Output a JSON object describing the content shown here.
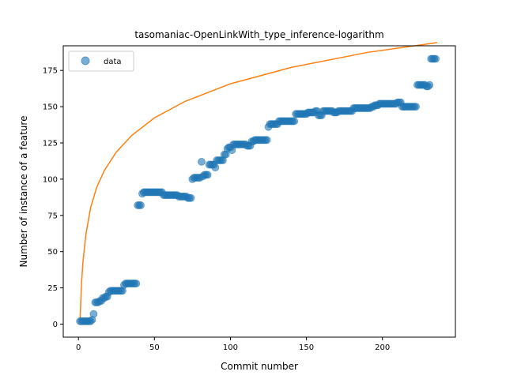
{
  "chart_data": {
    "type": "scatter",
    "title": "tasomaniac-OpenLinkWith_type_inference-logarithm",
    "xlabel": "Commit number",
    "ylabel": "Number of instance of a feature",
    "xlim": [
      -10,
      248
    ],
    "ylim": [
      -9,
      192
    ],
    "xticks": [
      0,
      50,
      100,
      150,
      200
    ],
    "yticks": [
      0,
      25,
      50,
      75,
      100,
      125,
      150,
      175
    ],
    "legend": {
      "position": "top-left",
      "entries": [
        {
          "label": "data"
        }
      ]
    },
    "colors": {
      "data": "#1f77b4",
      "fit": "#ff7f0e"
    },
    "series": [
      {
        "name": "data",
        "kind": "scatter",
        "points": [
          [
            1,
            2
          ],
          [
            2,
            2
          ],
          [
            3,
            2
          ],
          [
            4,
            2
          ],
          [
            5,
            2
          ],
          [
            6,
            2
          ],
          [
            7,
            2
          ],
          [
            8,
            2
          ],
          [
            9,
            3
          ],
          [
            10,
            7
          ],
          [
            11,
            15
          ],
          [
            12,
            15
          ],
          [
            13,
            15
          ],
          [
            14,
            16
          ],
          [
            15,
            16
          ],
          [
            16,
            18
          ],
          [
            17,
            18
          ],
          [
            18,
            19
          ],
          [
            19,
            19
          ],
          [
            20,
            22
          ],
          [
            21,
            23
          ],
          [
            22,
            23
          ],
          [
            23,
            23
          ],
          [
            24,
            23
          ],
          [
            25,
            23
          ],
          [
            26,
            23
          ],
          [
            27,
            23
          ],
          [
            28,
            23
          ],
          [
            29,
            23
          ],
          [
            30,
            27
          ],
          [
            31,
            28
          ],
          [
            32,
            28
          ],
          [
            33,
            28
          ],
          [
            34,
            28
          ],
          [
            35,
            28
          ],
          [
            36,
            28
          ],
          [
            37,
            28
          ],
          [
            38,
            28
          ],
          [
            39,
            82
          ],
          [
            40,
            82
          ],
          [
            41,
            82
          ],
          [
            42,
            90
          ],
          [
            43,
            91
          ],
          [
            44,
            91
          ],
          [
            45,
            91
          ],
          [
            46,
            91
          ],
          [
            47,
            91
          ],
          [
            48,
            91
          ],
          [
            49,
            91
          ],
          [
            50,
            91
          ],
          [
            51,
            91
          ],
          [
            52,
            91
          ],
          [
            53,
            91
          ],
          [
            54,
            91
          ],
          [
            55,
            91
          ],
          [
            56,
            89
          ],
          [
            57,
            89
          ],
          [
            58,
            89
          ],
          [
            59,
            89
          ],
          [
            60,
            89
          ],
          [
            61,
            89
          ],
          [
            62,
            89
          ],
          [
            63,
            89
          ],
          [
            64,
            89
          ],
          [
            65,
            89
          ],
          [
            66,
            88
          ],
          [
            67,
            88
          ],
          [
            68,
            88
          ],
          [
            69,
            88
          ],
          [
            70,
            88
          ],
          [
            71,
            88
          ],
          [
            72,
            87
          ],
          [
            73,
            87
          ],
          [
            74,
            87
          ],
          [
            75,
            100
          ],
          [
            76,
            101
          ],
          [
            77,
            101
          ],
          [
            78,
            101
          ],
          [
            79,
            101
          ],
          [
            80,
            101
          ],
          [
            81,
            112
          ],
          [
            82,
            102
          ],
          [
            83,
            103
          ],
          [
            84,
            103
          ],
          [
            85,
            103
          ],
          [
            86,
            110
          ],
          [
            87,
            110
          ],
          [
            88,
            110
          ],
          [
            89,
            110
          ],
          [
            90,
            108
          ],
          [
            91,
            113
          ],
          [
            92,
            113
          ],
          [
            93,
            113
          ],
          [
            94,
            113
          ],
          [
            95,
            113
          ],
          [
            96,
            117
          ],
          [
            97,
            117
          ],
          [
            98,
            121
          ],
          [
            99,
            122
          ],
          [
            100,
            122
          ],
          [
            101,
            120
          ],
          [
            102,
            124
          ],
          [
            103,
            124
          ],
          [
            104,
            124
          ],
          [
            105,
            124
          ],
          [
            106,
            124
          ],
          [
            107,
            124
          ],
          [
            108,
            124
          ],
          [
            109,
            124
          ],
          [
            110,
            124
          ],
          [
            111,
            123
          ],
          [
            112,
            123
          ],
          [
            113,
            123
          ],
          [
            114,
            126
          ],
          [
            115,
            126
          ],
          [
            116,
            127
          ],
          [
            117,
            127
          ],
          [
            118,
            127
          ],
          [
            119,
            127
          ],
          [
            120,
            127
          ],
          [
            121,
            127
          ],
          [
            122,
            127
          ],
          [
            123,
            127
          ],
          [
            124,
            127
          ],
          [
            125,
            136
          ],
          [
            126,
            138
          ],
          [
            127,
            138
          ],
          [
            128,
            138
          ],
          [
            129,
            138
          ],
          [
            130,
            138
          ],
          [
            131,
            138
          ],
          [
            132,
            140
          ],
          [
            133,
            140
          ],
          [
            134,
            140
          ],
          [
            135,
            140
          ],
          [
            136,
            140
          ],
          [
            137,
            140
          ],
          [
            138,
            140
          ],
          [
            139,
            140
          ],
          [
            140,
            140
          ],
          [
            141,
            140
          ],
          [
            142,
            140
          ],
          [
            143,
            145
          ],
          [
            144,
            145
          ],
          [
            145,
            145
          ],
          [
            146,
            145
          ],
          [
            147,
            145
          ],
          [
            148,
            145
          ],
          [
            149,
            145
          ],
          [
            150,
            145
          ],
          [
            151,
            146
          ],
          [
            152,
            146
          ],
          [
            153,
            146
          ],
          [
            154,
            146
          ],
          [
            155,
            146
          ],
          [
            156,
            147
          ],
          [
            157,
            147
          ],
          [
            158,
            144
          ],
          [
            159,
            144
          ],
          [
            160,
            144
          ],
          [
            161,
            147
          ],
          [
            162,
            147
          ],
          [
            163,
            147
          ],
          [
            164,
            147
          ],
          [
            165,
            147
          ],
          [
            166,
            147
          ],
          [
            167,
            147
          ],
          [
            168,
            146
          ],
          [
            169,
            146
          ],
          [
            170,
            146
          ],
          [
            171,
            147
          ],
          [
            172,
            147
          ],
          [
            173,
            147
          ],
          [
            174,
            147
          ],
          [
            175,
            147
          ],
          [
            176,
            147
          ],
          [
            177,
            147
          ],
          [
            178,
            147
          ],
          [
            179,
            147
          ],
          [
            180,
            147
          ],
          [
            181,
            149
          ],
          [
            182,
            149
          ],
          [
            183,
            149
          ],
          [
            184,
            149
          ],
          [
            185,
            149
          ],
          [
            186,
            149
          ],
          [
            187,
            149
          ],
          [
            188,
            149
          ],
          [
            189,
            149
          ],
          [
            190,
            149
          ],
          [
            191,
            149
          ],
          [
            192,
            149
          ],
          [
            193,
            150
          ],
          [
            194,
            150
          ],
          [
            195,
            151
          ],
          [
            196,
            151
          ],
          [
            197,
            151
          ],
          [
            198,
            152
          ],
          [
            199,
            152
          ],
          [
            200,
            152
          ],
          [
            201,
            152
          ],
          [
            202,
            152
          ],
          [
            203,
            152
          ],
          [
            204,
            152
          ],
          [
            205,
            152
          ],
          [
            206,
            152
          ],
          [
            207,
            152
          ],
          [
            208,
            152
          ],
          [
            209,
            152
          ],
          [
            210,
            153
          ],
          [
            211,
            153
          ],
          [
            212,
            153
          ],
          [
            213,
            150
          ],
          [
            214,
            150
          ],
          [
            215,
            150
          ],
          [
            216,
            150
          ],
          [
            217,
            150
          ],
          [
            218,
            150
          ],
          [
            219,
            150
          ],
          [
            220,
            150
          ],
          [
            221,
            150
          ],
          [
            222,
            150
          ],
          [
            223,
            165
          ],
          [
            224,
            165
          ],
          [
            225,
            165
          ],
          [
            226,
            165
          ],
          [
            227,
            165
          ],
          [
            228,
            165
          ],
          [
            229,
            164
          ],
          [
            230,
            164
          ],
          [
            231,
            165
          ],
          [
            232,
            183
          ],
          [
            233,
            183
          ],
          [
            234,
            183
          ],
          [
            235,
            183
          ]
        ]
      },
      {
        "name": "",
        "kind": "line",
        "function": "logarithm",
        "x": [
          1,
          2,
          3,
          5,
          8,
          12,
          17,
          25,
          35,
          50,
          70,
          100,
          140,
          190,
          236
        ],
        "y": [
          1.5,
          28,
          43.3,
          62.6,
          80.3,
          94.3,
          105.9,
          118.8,
          130.1,
          142.3,
          153.6,
          165.8,
          177.1,
          187.4,
          194.2
        ]
      }
    ]
  }
}
